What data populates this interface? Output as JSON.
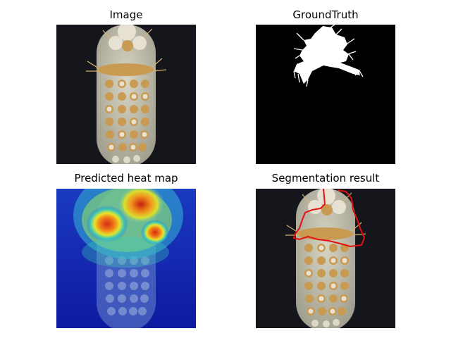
{
  "figure": {
    "panels": [
      {
        "title": "Image",
        "content": "toothbrush-head-photo"
      },
      {
        "title": "GroundTruth",
        "content": "binary-defect-mask"
      },
      {
        "title": "Predicted heat map",
        "content": "anomaly-heatmap-overlay"
      },
      {
        "title": "Segmentation result",
        "content": "photo-with-red-contour"
      }
    ]
  },
  "colors": {
    "photo_background": "#14161c",
    "brush_handle": "#c9c6b4",
    "bristle_tuft_tan": "#c99a52",
    "bristle_tuft_light": "#e8e2d2",
    "mask_background": "#000000",
    "mask_foreground": "#ffffff",
    "heatmap_low": "#1420a8",
    "heatmap_high": "#d42a14",
    "contour": "#e51010"
  }
}
